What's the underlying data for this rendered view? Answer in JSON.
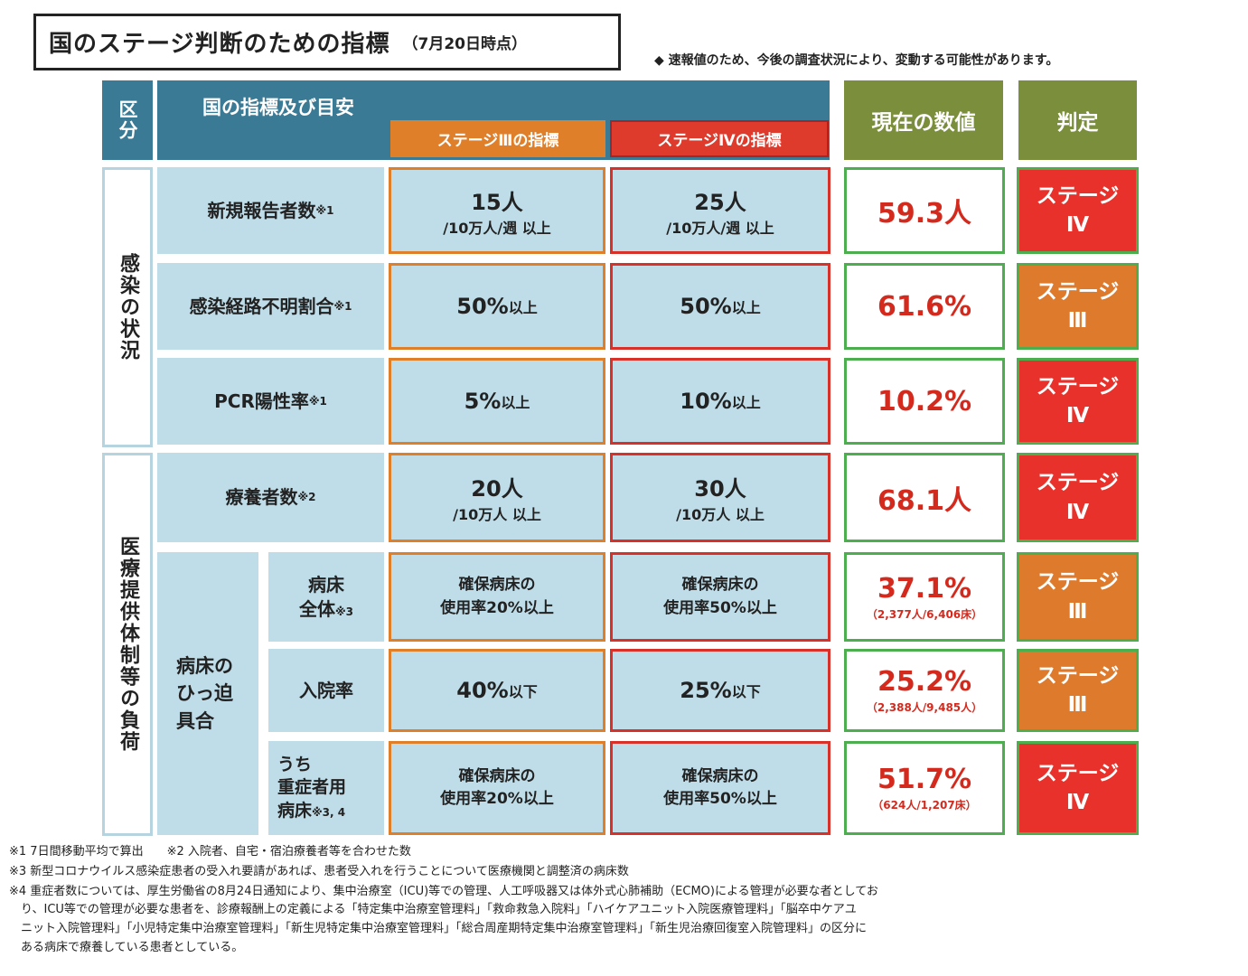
{
  "title": {
    "main": "国のステージ判断のための指標",
    "date": "（7月20日時点）"
  },
  "notice": "◆ 速報値のため、今後の調査状況により、変動する可能性があります。",
  "header": {
    "category": "区分",
    "indicators": "国の指標及び目安",
    "stage3": "ステージⅢの指標",
    "stage4": "ステージⅣの指標",
    "current": "現在の数値",
    "judgment": "判定"
  },
  "categories": {
    "infection": "感染の状況",
    "medical": "医療提供体制等の負荷"
  },
  "bed_group": "病床のひっ迫具合",
  "rows": [
    {
      "label": "新規報告者数",
      "note": "※1",
      "s3_main": "15人",
      "s3_sub": "/10万人/週 以上",
      "s4_main": "25人",
      "s4_sub": "/10万人/週 以上",
      "current": "59.3人",
      "current_sub": "",
      "judgment_line1": "ステージ",
      "judgment_line2": "Ⅳ"
    },
    {
      "label": "感染経路不明割合",
      "note": "※1",
      "s3_main": "50%",
      "s3_sub": "以上",
      "s4_main": "50%",
      "s4_sub": "以上",
      "current": "61.6%",
      "current_sub": "",
      "judgment_line1": "ステージ",
      "judgment_line2": "Ⅲ"
    },
    {
      "label": "PCR陽性率",
      "note": "※1",
      "s3_main": "5%",
      "s3_sub": "以上",
      "s4_main": "10%",
      "s4_sub": "以上",
      "current": "10.2%",
      "current_sub": "",
      "judgment_line1": "ステージ",
      "judgment_line2": "Ⅳ"
    },
    {
      "label": "療養者数",
      "note": "※2",
      "s3_main": "20人",
      "s3_sub": "/10万人 以上",
      "s4_main": "30人",
      "s4_sub": "/10万人 以上",
      "current": "68.1人",
      "current_sub": "",
      "judgment_line1": "ステージ",
      "judgment_line2": "Ⅳ"
    },
    {
      "label_line1": "病床",
      "label_line2": "全体",
      "note": "※3",
      "s3_line1": "確保病床の",
      "s3_line2": "使用率20%以上",
      "s4_line1": "確保病床の",
      "s4_line2": "使用率50%以上",
      "current": "37.1%",
      "current_sub": "（2,377人/6,406床）",
      "judgment_line1": "ステージ",
      "judgment_line2": "Ⅲ"
    },
    {
      "label": "入院率",
      "note": "",
      "s3_main": "40%",
      "s3_sub": "以下",
      "s4_main": "25%",
      "s4_sub": "以下",
      "current": "25.2%",
      "current_sub": "（2,388人/9,485人）",
      "judgment_line1": "ステージ",
      "judgment_line2": "Ⅲ"
    },
    {
      "label_line1": "うち",
      "label_line2": "重症者用",
      "label_line3": "病床",
      "note": "※3, 4",
      "s3_line1": "確保病床の",
      "s3_line2": "使用率20%以上",
      "s4_line1": "確保病床の",
      "s4_line2": "使用率50%以上",
      "current": "51.7%",
      "current_sub": "（624人/1,207床）",
      "judgment_line1": "ステージ",
      "judgment_line2": "Ⅳ"
    }
  ],
  "footnotes": [
    "※1 7日間移動平均で算出　　※2 入院者、自宅・宿泊療養者等を合わせた数",
    "※3 新型コロナウイルス感染症患者の受入れ要請があれば、患者受入れを行うことについて医療機関と調整済の病床数",
    "※4 重症者数については、厚生労働省の8月24日通知により、集中治療室（ICU)等での管理、人工呼吸器又は体外式心肺補助（ECMO)による管理が必要な者としてお",
    "　り、ICU等での管理が必要な患者を、診療報酬上の定義による「特定集中治療室管理料」「救命救急入院料」「ハイケアユニット入院医療管理料」「脳卒中ケアユ",
    "　ニット入院管理料」「小児特定集中治療室管理料」「新生児特定集中治療室管理料」「総合周産期特定集中治療室管理料」「新生児治療回復室入院管理料」の区分に",
    "　ある病床で療養している患者としている。"
  ],
  "colors": {
    "header_blue": "#3b7a95",
    "header_green": "#7a8e3b",
    "stage3_orange": "#e07f2a",
    "stage4_red": "#de3b2c",
    "cell_blue": "#bfdde8",
    "value_red": "#d42a1e",
    "border_green": "#4cae4f"
  }
}
